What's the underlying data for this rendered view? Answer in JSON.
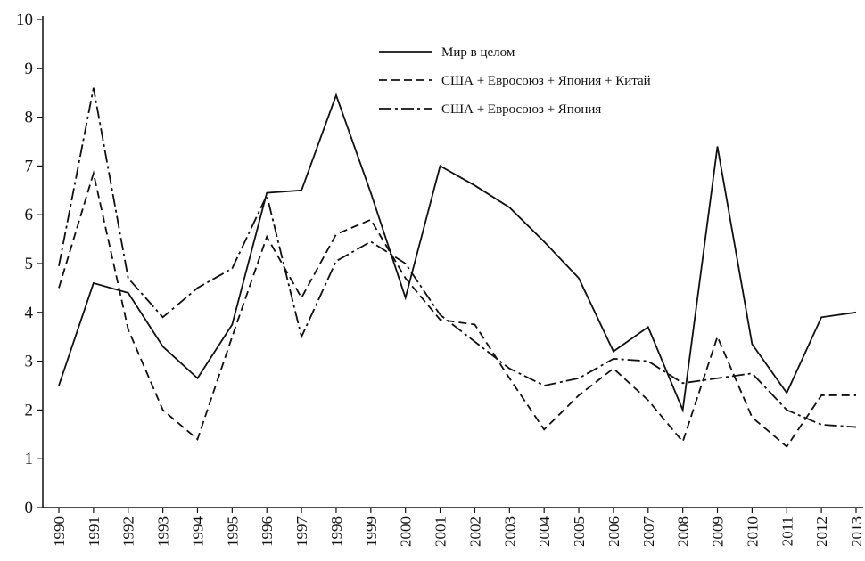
{
  "chart_data": {
    "type": "line",
    "x": [
      1990,
      1991,
      1992,
      1993,
      1994,
      1995,
      1996,
      1997,
      1998,
      1999,
      2000,
      2001,
      2002,
      2003,
      2004,
      2005,
      2006,
      2007,
      2008,
      2009,
      2010,
      2011,
      2012,
      2013
    ],
    "xlim": [
      1990,
      2013
    ],
    "xticks": [
      1990,
      1991,
      1992,
      1993,
      1994,
      1995,
      1996,
      1997,
      1998,
      1999,
      2000,
      2001,
      2002,
      2003,
      2004,
      2005,
      2006,
      2007,
      2008,
      2009,
      2010,
      2011,
      2012,
      2013
    ],
    "ylim": [
      0,
      10
    ],
    "yticks": [
      0,
      1,
      2,
      3,
      4,
      5,
      6,
      7,
      8,
      9,
      10
    ],
    "legend": "upper center",
    "series": [
      {
        "name": "Мир в целом",
        "color": "#111111",
        "dash": "solid",
        "values": [
          2.5,
          4.6,
          4.4,
          3.3,
          2.65,
          3.75,
          6.45,
          6.5,
          8.45,
          6.45,
          4.3,
          7.0,
          6.6,
          6.15,
          5.45,
          4.7,
          3.2,
          3.7,
          2.0,
          7.4,
          3.35,
          2.35,
          3.9,
          4.0
        ]
      },
      {
        "name": "США + Евросоюз + Япония + Китай",
        "color": "#111111",
        "dash": "dashed",
        "values": [
          4.5,
          6.85,
          3.65,
          2.0,
          1.4,
          3.5,
          5.55,
          4.3,
          5.6,
          5.9,
          4.7,
          3.85,
          3.75,
          2.65,
          1.6,
          2.3,
          2.85,
          2.2,
          1.35,
          3.5,
          1.85,
          1.25,
          2.3,
          2.3
        ]
      },
      {
        "name": "США + Евросоюз + Япония",
        "color": "#111111",
        "dash": "dashdot",
        "values": [
          4.95,
          8.6,
          4.7,
          3.9,
          4.5,
          4.9,
          6.4,
          3.5,
          5.05,
          5.45,
          5.0,
          3.95,
          3.4,
          2.85,
          2.5,
          2.65,
          3.05,
          3.0,
          2.55,
          2.65,
          2.75,
          2.0,
          1.7,
          1.65
        ]
      }
    ]
  }
}
